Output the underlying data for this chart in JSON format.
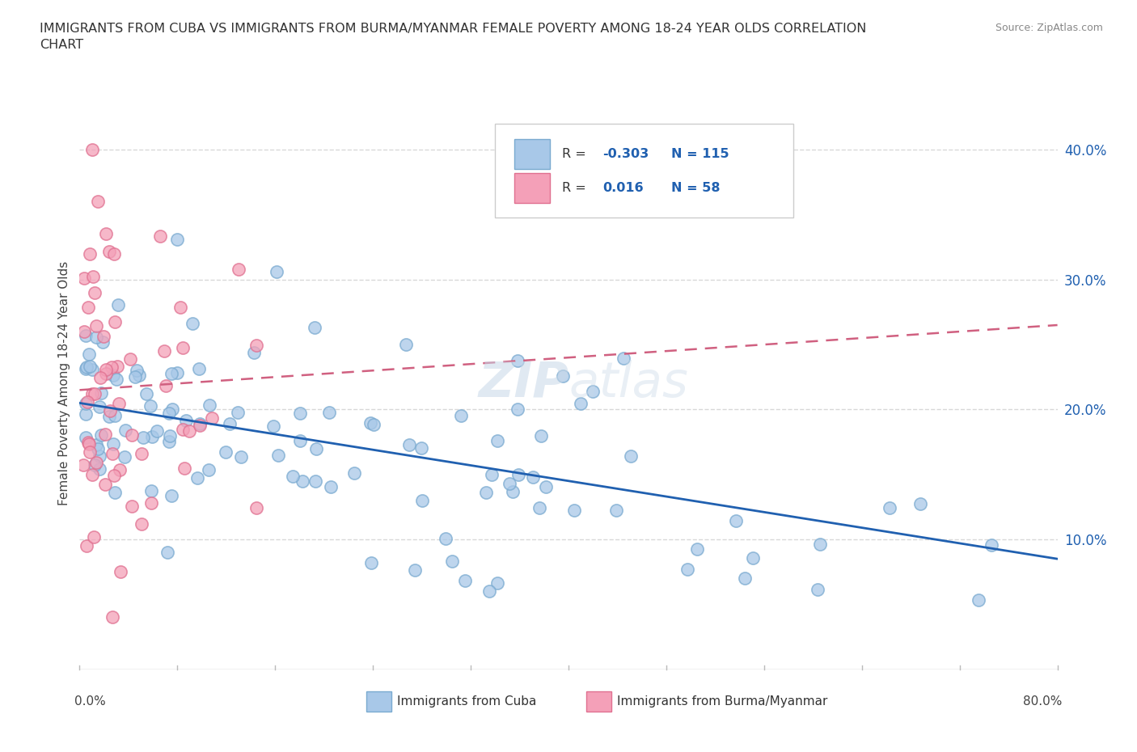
{
  "title": "IMMIGRANTS FROM CUBA VS IMMIGRANTS FROM BURMA/MYANMAR FEMALE POVERTY AMONG 18-24 YEAR OLDS CORRELATION\nCHART",
  "source": "Source: ZipAtlas.com",
  "ylabel": "Female Poverty Among 18-24 Year Olds",
  "xlim": [
    0.0,
    0.8
  ],
  "ylim": [
    0.0,
    0.44
  ],
  "cuba_color": "#a8c8e8",
  "burma_color": "#f4a0b8",
  "cuba_edge_color": "#7aaad0",
  "burma_edge_color": "#e07090",
  "cuba_line_color": "#2060b0",
  "burma_line_color": "#d06080",
  "ytick_positions": [
    0.1,
    0.2,
    0.3,
    0.4
  ],
  "ytick_labels": [
    "10.0%",
    "20.0%",
    "30.0%",
    "40.0%"
  ],
  "grid_color": "#d8d8d8",
  "background_color": "#ffffff",
  "watermark_color": "#d8e4ee",
  "title_color": "#333333",
  "source_color": "#888888",
  "legend_text_color": "#333333",
  "legend_value_color": "#2060b0",
  "cuba_trend_x": [
    0.0,
    0.8
  ],
  "cuba_trend_y": [
    0.205,
    0.085
  ],
  "burma_trend_x": [
    0.0,
    0.8
  ],
  "burma_trend_y": [
    0.215,
    0.265
  ]
}
